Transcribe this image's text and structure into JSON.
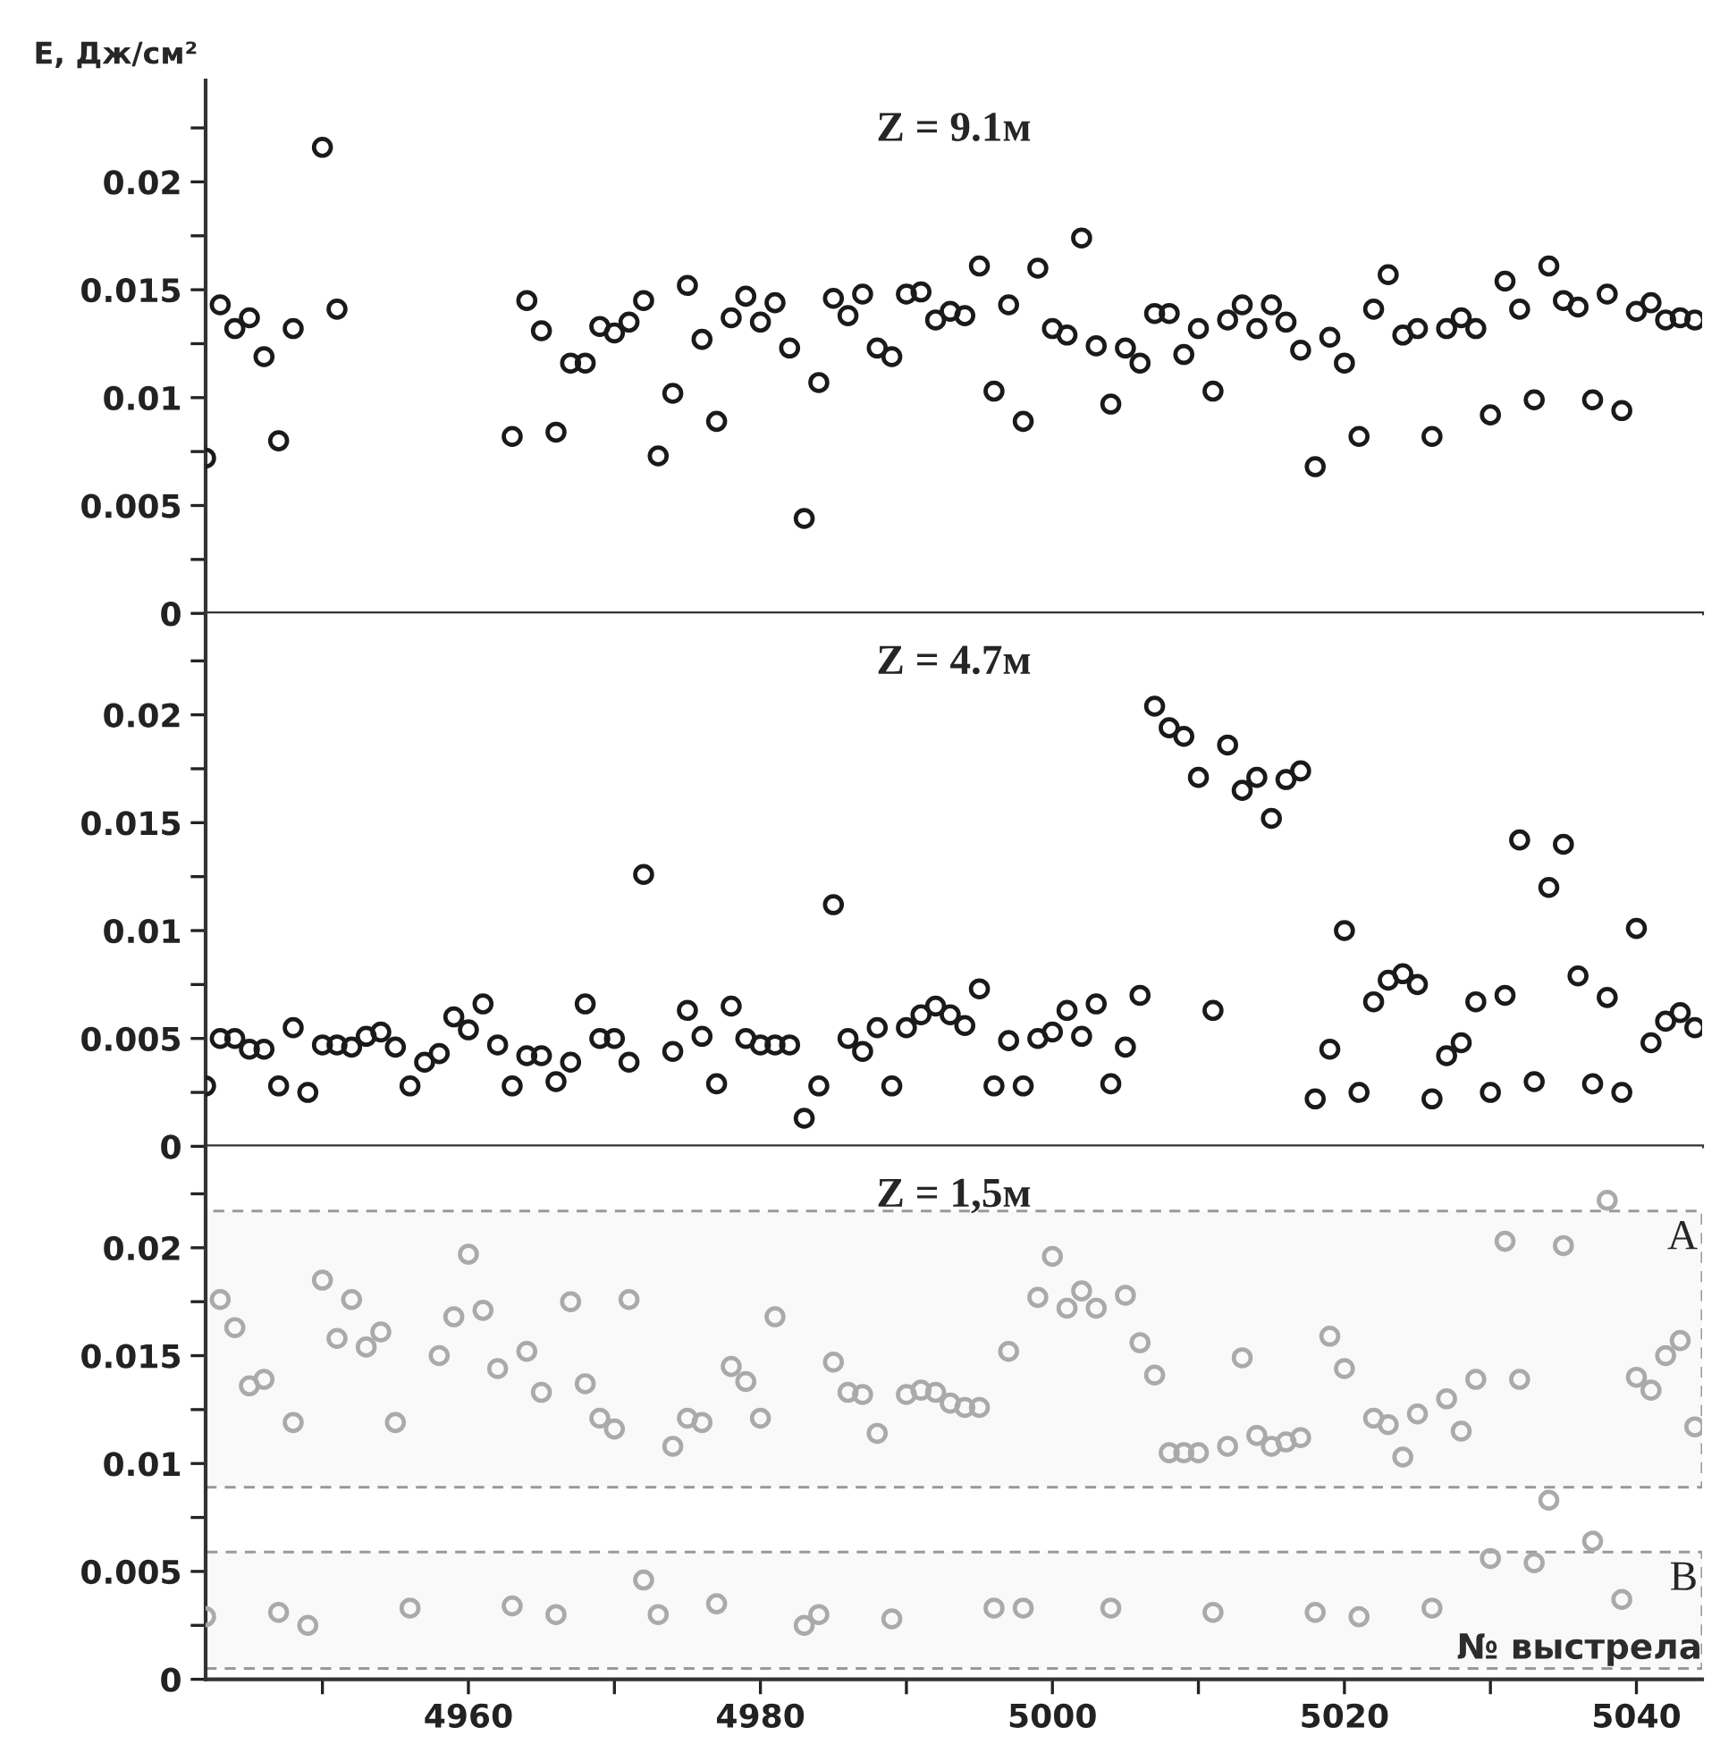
{
  "chart_data": [
    {
      "type": "scatter",
      "title": "Z = 9.1м",
      "ylabel": "E, Дж/см²",
      "xlim": [
        4942,
        5044.5
      ],
      "ylim": [
        0,
        0.0247
      ],
      "yticks": [
        0,
        {
          "value": 0.0025,
          "label": null
        },
        0.005,
        {
          "value": 0.0075,
          "label": null
        },
        0.01,
        {
          "value": 0.0125,
          "label": null
        },
        0.015,
        {
          "value": 0.0175,
          "label": null
        },
        0.02,
        {
          "value": 0.0225,
          "label": null
        }
      ],
      "tick_labels": "y",
      "marker": "circle",
      "grid": false,
      "series": [
        {
          "color": "#1a1a1a",
          "x": [
            4942,
            4943,
            4944,
            4945,
            4946,
            4947,
            4948,
            4950,
            4951,
            4963,
            4964,
            4965,
            4966,
            4967,
            4968,
            4969,
            4970,
            4971,
            4972,
            4973,
            4974,
            4975,
            4976,
            4977,
            4978,
            4979,
            4980,
            4981,
            4982,
            4983,
            4984,
            4985,
            4986,
            4987,
            4988,
            4989,
            4990,
            4991,
            4992,
            4993,
            4994,
            4995,
            4996,
            4997,
            4998,
            4999,
            5000,
            5001,
            5002,
            5003,
            5004,
            5005,
            5006,
            5007,
            5008,
            5009,
            5010,
            5011,
            5012,
            5013,
            5014,
            5015,
            5016,
            5017,
            5018,
            5019,
            5020,
            5021,
            5022,
            5023,
            5024,
            5025,
            5026,
            5027,
            5028,
            5029,
            5030,
            5031,
            5032,
            5033,
            5034,
            5035,
            5036,
            5037,
            5038,
            5039,
            5040,
            5041,
            5042,
            5043,
            5044
          ],
          "values": [
            0.0072,
            0.0143,
            0.0132,
            0.0137,
            0.0119,
            0.008,
            0.0132,
            0.0216,
            0.0141,
            0.0082,
            0.0145,
            0.0131,
            0.0084,
            0.0116,
            0.0116,
            0.0133,
            0.013,
            0.0135,
            0.0145,
            0.0073,
            0.0102,
            0.0152,
            0.0127,
            0.0089,
            0.0137,
            0.0147,
            0.0135,
            0.0144,
            0.0123,
            0.0044,
            0.0107,
            0.0146,
            0.0138,
            0.0148,
            0.0123,
            0.0119,
            0.0148,
            0.0149,
            0.0136,
            0.014,
            0.0138,
            0.0161,
            0.0103,
            0.0143,
            0.0089,
            0.016,
            0.0132,
            0.0129,
            0.0174,
            0.0124,
            0.0097,
            0.0123,
            0.0116,
            0.0139,
            0.0139,
            0.012,
            0.0132,
            0.0103,
            0.0136,
            0.0143,
            0.0132,
            0.0143,
            0.0135,
            0.0122,
            0.0068,
            0.0128,
            0.0116,
            0.0082,
            0.0141,
            0.0157,
            0.0129,
            0.0132,
            0.0082,
            0.0132,
            0.0137,
            0.0132,
            0.0092,
            0.0154,
            0.0141,
            0.0099,
            0.0161,
            0.0145,
            0.0142,
            0.0099,
            0.0148,
            0.0094,
            0.014,
            0.0144,
            0.0136,
            0.0137,
            0.0136
          ]
        }
      ]
    },
    {
      "type": "scatter",
      "title": "Z = 4.7м",
      "xlim": [
        4942,
        5044.5
      ],
      "ylim": [
        0,
        0.0247
      ],
      "yticks": [
        0,
        {
          "value": 0.0025,
          "label": null
        },
        0.005,
        {
          "value": 0.0075,
          "label": null
        },
        0.01,
        {
          "value": 0.0125,
          "label": null
        },
        0.015,
        {
          "value": 0.0175,
          "label": null
        },
        0.02,
        {
          "value": 0.0225,
          "label": null
        }
      ],
      "tick_labels": "y",
      "marker": "circle",
      "grid": false,
      "series": [
        {
          "color": "#1a1a1a",
          "x": [
            4942,
            4943,
            4944,
            4945,
            4946,
            4947,
            4948,
            4949,
            4950,
            4951,
            4952,
            4953,
            4954,
            4955,
            4956,
            4957,
            4958,
            4959,
            4960,
            4961,
            4962,
            4963,
            4964,
            4965,
            4966,
            4967,
            4968,
            4969,
            4970,
            4971,
            4972,
            4974,
            4975,
            4976,
            4977,
            4978,
            4979,
            4980,
            4981,
            4982,
            4983,
            4984,
            4985,
            4986,
            4987,
            4988,
            4989,
            4990,
            4991,
            4992,
            4993,
            4994,
            4995,
            4996,
            4997,
            4998,
            4999,
            5000,
            5001,
            5002,
            5003,
            5004,
            5005,
            5006,
            5007,
            5008,
            5009,
            5010,
            5011,
            5012,
            5013,
            5014,
            5015,
            5016,
            5017,
            5018,
            5019,
            5020,
            5021,
            5022,
            5023,
            5024,
            5025,
            5026,
            5027,
            5028,
            5029,
            5030,
            5031,
            5032,
            5033,
            5034,
            5035,
            5036,
            5037,
            5038,
            5039,
            5040,
            5041,
            5042,
            5043,
            5044
          ],
          "values": [
            0.0028,
            0.005,
            0.005,
            0.0045,
            0.0045,
            0.0028,
            0.0055,
            0.0025,
            0.0047,
            0.0047,
            0.0046,
            0.0051,
            0.0053,
            0.0046,
            0.0028,
            0.0039,
            0.0043,
            0.006,
            0.0054,
            0.0066,
            0.0047,
            0.0028,
            0.0042,
            0.0042,
            0.003,
            0.0039,
            0.0066,
            0.005,
            0.005,
            0.0039,
            0.0126,
            0.0044,
            0.0063,
            0.0051,
            0.0029,
            0.0065,
            0.005,
            0.0047,
            0.0047,
            0.0047,
            0.0013,
            0.0028,
            0.0112,
            0.005,
            0.0044,
            0.0055,
            0.0028,
            0.0055,
            0.0061,
            0.0065,
            0.0061,
            0.0056,
            0.0073,
            0.0028,
            0.0049,
            0.0028,
            0.005,
            0.0053,
            0.0063,
            0.0051,
            0.0066,
            0.0029,
            0.0046,
            0.007,
            0.0204,
            0.0194,
            0.019,
            0.0171,
            0.0063,
            0.0186,
            0.0165,
            0.0171,
            0.0152,
            0.017,
            0.0174,
            0.0022,
            0.0045,
            0.01,
            0.0025,
            0.0067,
            0.0077,
            0.008,
            0.0075,
            0.0022,
            0.0042,
            0.0048,
            0.0067,
            0.0025,
            0.007,
            0.0142,
            0.003,
            0.012,
            0.014,
            0.0079,
            0.0029,
            0.0069,
            0.0025,
            0.0101,
            0.0048,
            0.0058,
            0.0062,
            0.0055
          ]
        }
      ]
    },
    {
      "type": "scatter",
      "title": "Z = 1,5м",
      "xlabel": "№ выстрела",
      "xlim": [
        4942,
        5044.5
      ],
      "xticks": [
        {
          "value": 4950,
          "label": null
        },
        4960,
        {
          "value": 4970,
          "label": null
        },
        4980,
        {
          "value": 4990,
          "label": null
        },
        5000,
        {
          "value": 5010,
          "label": null
        },
        5020,
        {
          "value": 5030,
          "label": null
        },
        5040
      ],
      "ylim": [
        0,
        0.0247
      ],
      "yticks": [
        0,
        {
          "value": 0.0025,
          "label": null
        },
        0.005,
        {
          "value": 0.0075,
          "label": null
        },
        0.01,
        {
          "value": 0.0125,
          "label": null
        },
        0.015,
        {
          "value": 0.0175,
          "label": null
        },
        0.02,
        {
          "value": 0.0225,
          "label": null
        }
      ],
      "marker": "circle",
      "grid": false,
      "bands": [
        {
          "axis": "y",
          "from": 0.0089,
          "to": 0.0217,
          "label": "A",
          "color": "#999999"
        },
        {
          "axis": "y",
          "from": 0.0005,
          "to": 0.0059,
          "label": "B",
          "color": "#999999"
        }
      ],
      "series": [
        {
          "color": "#aaaaaa",
          "x": [
            4942,
            4943,
            4944,
            4945,
            4946,
            4947,
            4948,
            4949,
            4950,
            4951,
            4952,
            4953,
            4954,
            4955,
            4956,
            4958,
            4959,
            4960,
            4961,
            4962,
            4963,
            4964,
            4965,
            4966,
            4967,
            4968,
            4969,
            4970,
            4971,
            4972,
            4973,
            4974,
            4975,
            4976,
            4977,
            4978,
            4979,
            4980,
            4981,
            4983,
            4984,
            4985,
            4986,
            4987,
            4988,
            4989,
            4990,
            4991,
            4992,
            4993,
            4994,
            4995,
            4996,
            4997,
            4998,
            4999,
            5000,
            5001,
            5002,
            5003,
            5004,
            5005,
            5006,
            5007,
            5008,
            5009,
            5010,
            5011,
            5012,
            5013,
            5014,
            5015,
            5016,
            5017,
            5018,
            5019,
            5020,
            5021,
            5022,
            5023,
            5024,
            5025,
            5026,
            5027,
            5028,
            5029,
            5030,
            5031,
            5032,
            5033,
            5034,
            5035,
            5037,
            5038,
            5039,
            5040,
            5041,
            5042,
            5043,
            5044
          ],
          "values": [
            0.0029,
            0.0176,
            0.0163,
            0.0136,
            0.0139,
            0.0031,
            0.0119,
            0.0025,
            0.0185,
            0.0158,
            0.0176,
            0.0154,
            0.0161,
            0.0119,
            0.0033,
            0.015,
            0.0168,
            0.0197,
            0.0171,
            0.0144,
            0.0034,
            0.0152,
            0.0133,
            0.003,
            0.0175,
            0.0137,
            0.0121,
            0.0116,
            0.0176,
            0.0046,
            0.003,
            0.0108,
            0.0121,
            0.0119,
            0.0035,
            0.0145,
            0.0138,
            0.0121,
            0.0168,
            0.0025,
            0.003,
            0.0147,
            0.0133,
            0.0132,
            0.0114,
            0.0028,
            0.0132,
            0.0134,
            0.0133,
            0.0128,
            0.0126,
            0.0126,
            0.0033,
            0.0152,
            0.0033,
            0.0177,
            0.0196,
            0.0172,
            0.018,
            0.0172,
            0.0033,
            0.0178,
            0.0156,
            0.0141,
            0.0105,
            0.0105,
            0.0105,
            0.0031,
            0.0108,
            0.0149,
            0.0113,
            0.0108,
            0.011,
            0.0112,
            0.0031,
            0.0159,
            0.0144,
            0.0029,
            0.0121,
            0.0118,
            0.0103,
            0.0123,
            0.0033,
            0.013,
            0.0115,
            0.0139,
            0.0056,
            0.0203,
            0.0139,
            0.0054,
            0.0083,
            0.0201,
            0.0064,
            0.0222,
            0.0037,
            0.014,
            0.0134,
            0.015,
            0.0157,
            0.0117
          ]
        }
      ]
    }
  ]
}
